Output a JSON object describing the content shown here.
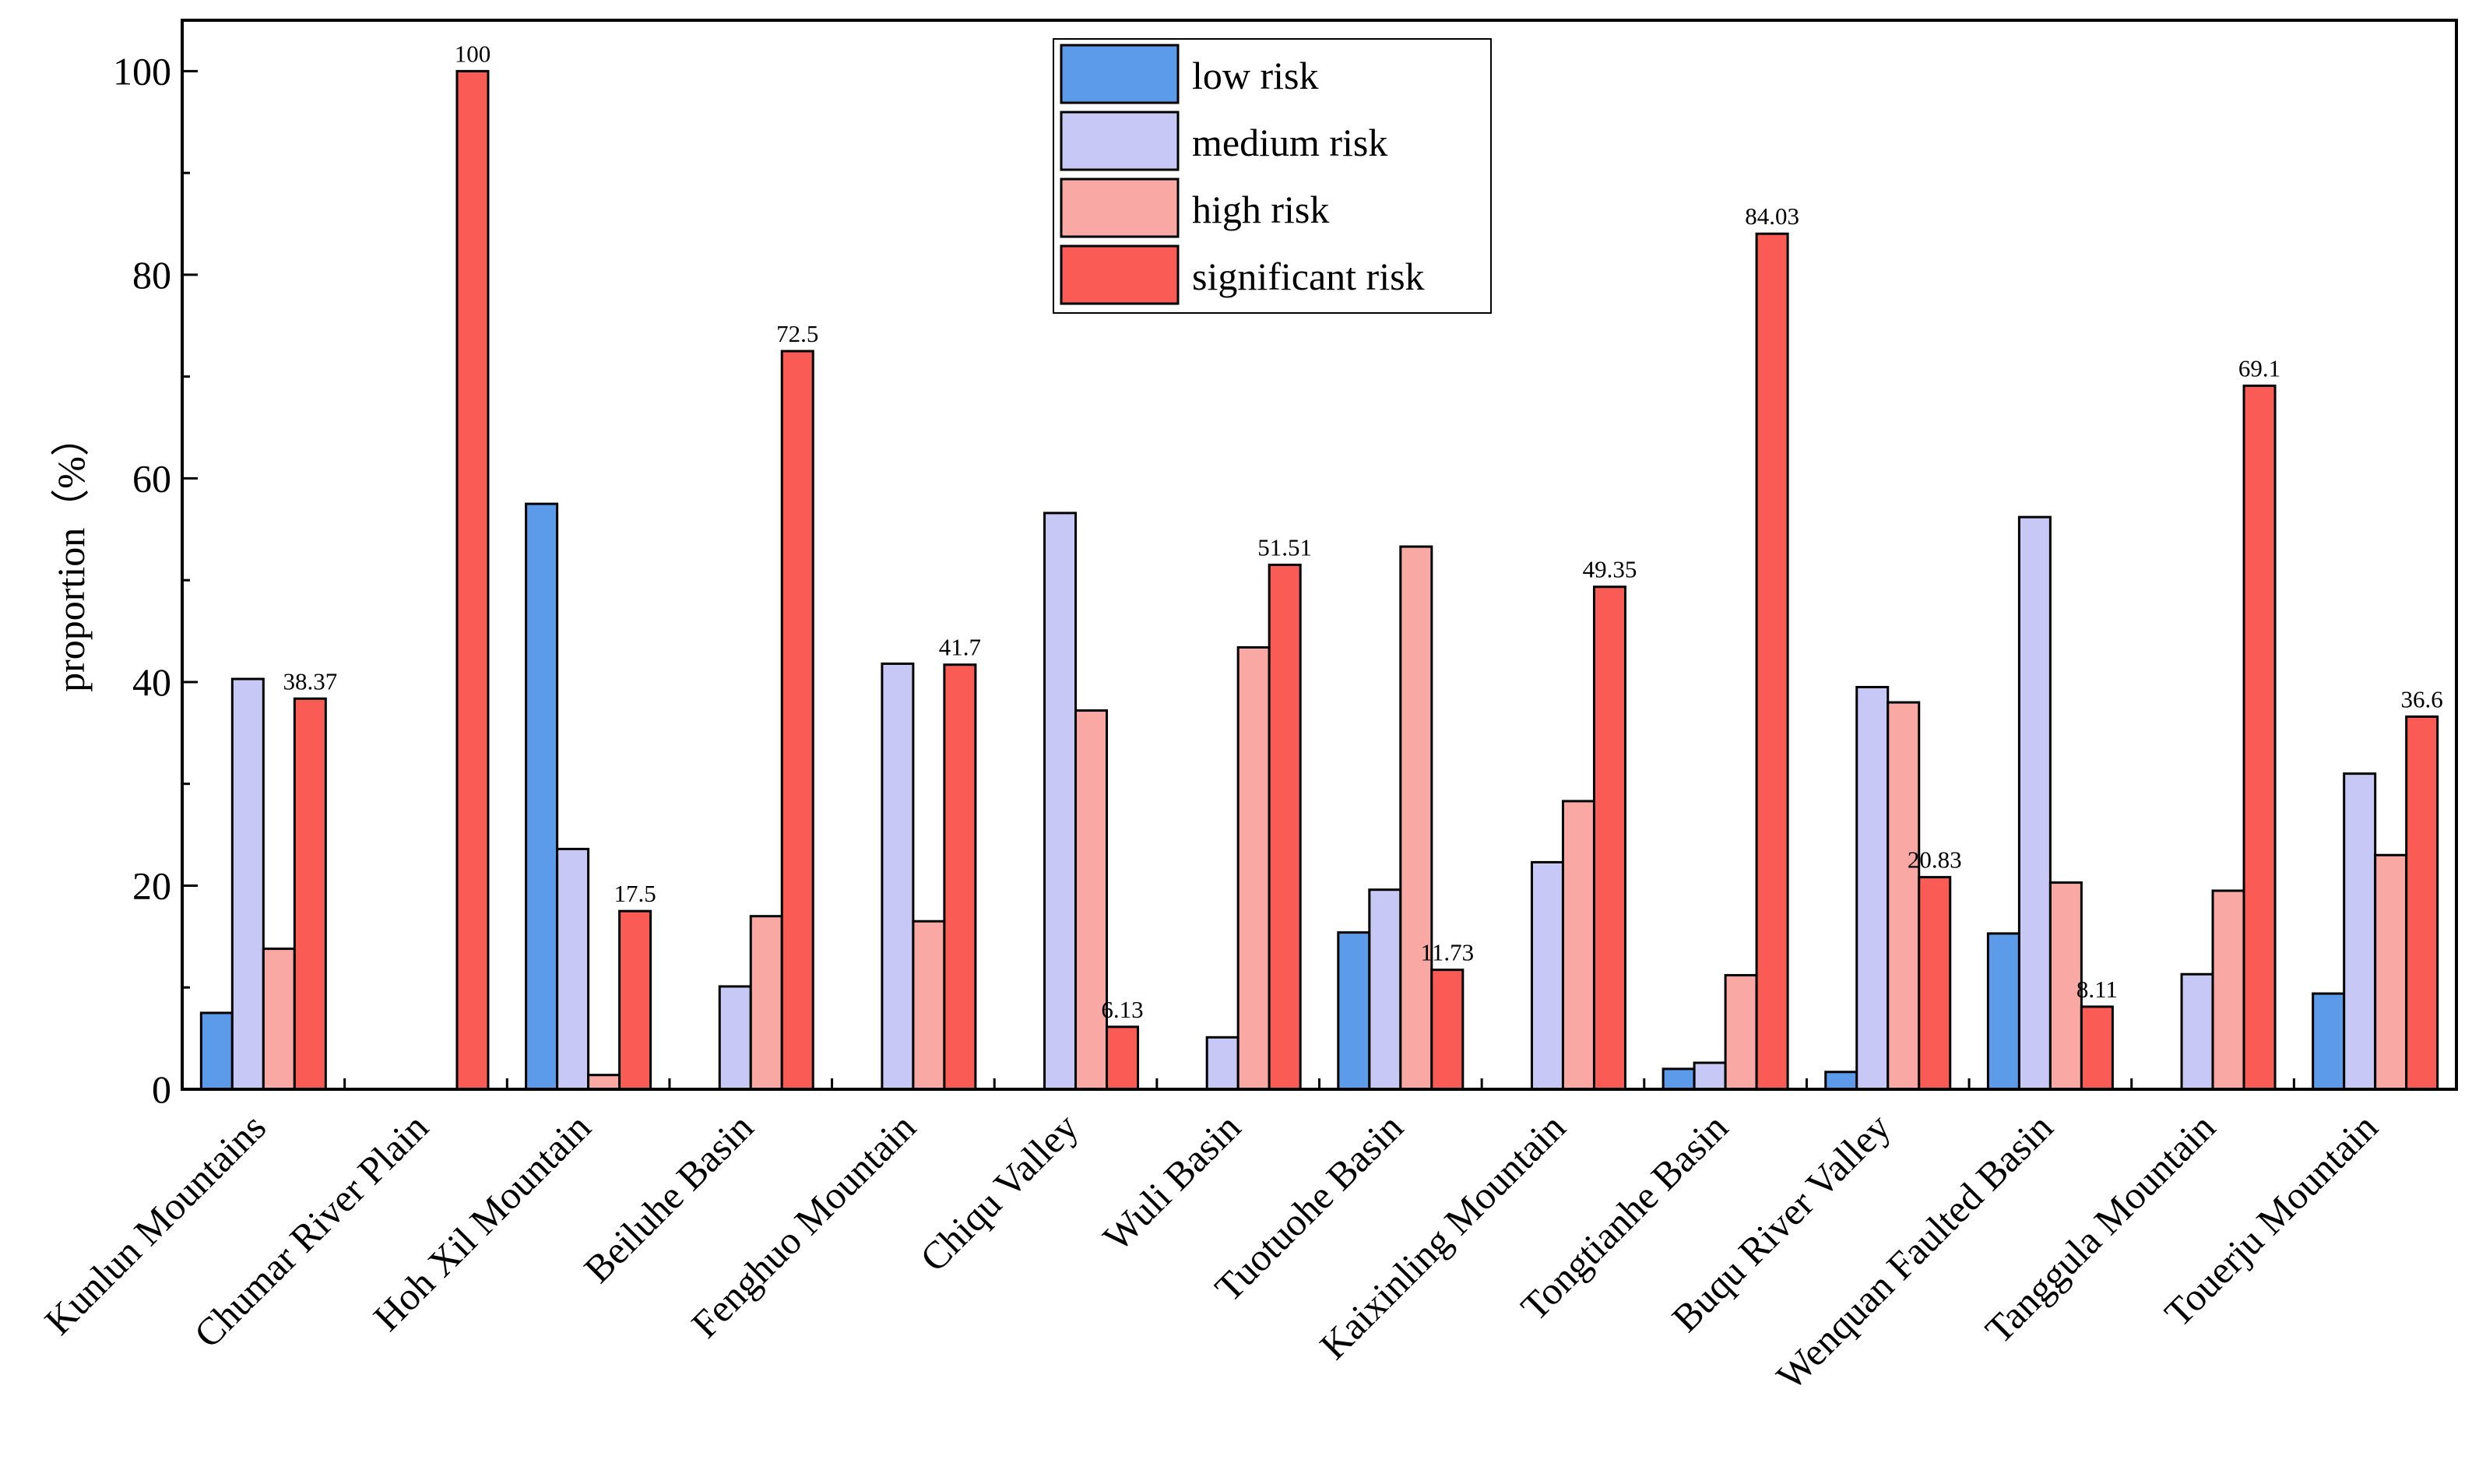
{
  "chart_data": {
    "type": "bar",
    "title": "",
    "xlabel": "",
    "ylabel": "proportion（%）",
    "ylim": [
      0,
      105
    ],
    "yticks": [
      0,
      20,
      40,
      60,
      80,
      100
    ],
    "grid": false,
    "legend_position": "top-center",
    "categories": [
      "Kunlun Mountains",
      "Chumar River Plain",
      "Hoh Xil Mountain",
      "Beiluhe Basin",
      "Fenghuo Mountain",
      "Chiqu Valley",
      "Wuli Basin",
      "Tuotuohe Basin",
      "Kaixinling Mountain",
      "Tongtianhe Basin",
      "Buqu River Valley",
      "Wenquan Faulted Basin",
      "Tanggula Mountain",
      "Touerju Mountain"
    ],
    "series": [
      {
        "name": "low risk",
        "color": "#5b9bea",
        "values": [
          7.5,
          0,
          57.5,
          0,
          0,
          0,
          0,
          15.4,
          0,
          2.0,
          1.7,
          15.3,
          0,
          9.4
        ]
      },
      {
        "name": "medium risk",
        "color": "#c8c8f7",
        "values": [
          40.3,
          0,
          23.6,
          10.1,
          41.8,
          56.6,
          5.1,
          19.6,
          22.3,
          2.6,
          39.5,
          56.2,
          11.3,
          31.0
        ]
      },
      {
        "name": "high risk",
        "color": "#f9a8a3",
        "values": [
          13.8,
          0,
          1.4,
          17.0,
          16.5,
          37.2,
          43.4,
          53.3,
          28.3,
          11.2,
          38.0,
          20.3,
          19.5,
          23.0
        ]
      },
      {
        "name": "significant risk",
        "color": "#fa5c55",
        "values": [
          38.37,
          100,
          17.5,
          72.5,
          41.7,
          6.13,
          51.51,
          11.73,
          49.35,
          84.03,
          20.83,
          8.11,
          69.1,
          36.6
        ]
      }
    ],
    "data_labels": [
      "38.37",
      "100",
      "17.5",
      "72.5",
      "41.7",
      "6.13",
      "51.51",
      "11.73",
      "49.35",
      "84.03",
      "20.83",
      "8.11",
      "69.1",
      "36.6"
    ]
  }
}
